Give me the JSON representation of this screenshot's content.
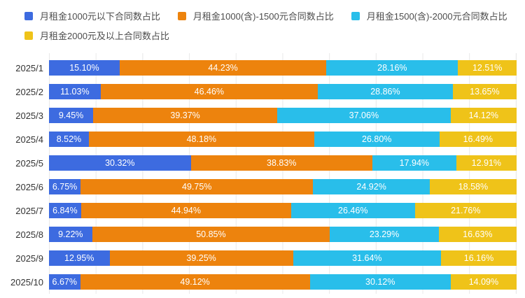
{
  "colors": {
    "background": "#ffffff",
    "gridline": "#e8e8e8",
    "category_label": "#333333",
    "legend_label": "#4c4c4c",
    "bar_value_text": "#ffffff"
  },
  "chart_data": {
    "type": "bar",
    "variant": "horizontal-stacked",
    "title": "",
    "categories": [
      "2025/1",
      "2025/2",
      "2025/3",
      "2025/4",
      "2025/5",
      "2025/6",
      "2025/7",
      "2025/8",
      "2025/9",
      "2025/10"
    ],
    "series": [
      {
        "name": "月租金1000元以下合同数占比",
        "color": "#3D6BE0",
        "values": [
          15.1,
          11.03,
          9.45,
          8.52,
          30.32,
          6.75,
          6.84,
          9.22,
          12.95,
          6.67
        ]
      },
      {
        "name": "月租金1000(含)-1500元合同数占比",
        "color": "#ED830D",
        "values": [
          44.23,
          46.46,
          39.37,
          48.18,
          38.83,
          49.75,
          44.94,
          50.85,
          39.25,
          49.12
        ]
      },
      {
        "name": "月租金1500(含)-2000元合同数占比",
        "color": "#29BEEA",
        "values": [
          28.16,
          28.86,
          37.06,
          26.8,
          17.94,
          24.92,
          26.46,
          23.29,
          31.64,
          30.12
        ]
      },
      {
        "name": "月租金2000元及以上合同数占比",
        "color": "#EFC319",
        "values": [
          12.51,
          13.65,
          14.12,
          16.49,
          12.91,
          18.58,
          21.76,
          16.63,
          16.16,
          14.09
        ]
      }
    ],
    "xlim": [
      0,
      100
    ],
    "value_suffix": "%",
    "value_decimals": 2,
    "grid": true,
    "gridline_interval_percent": 10,
    "legend_position": "top"
  }
}
